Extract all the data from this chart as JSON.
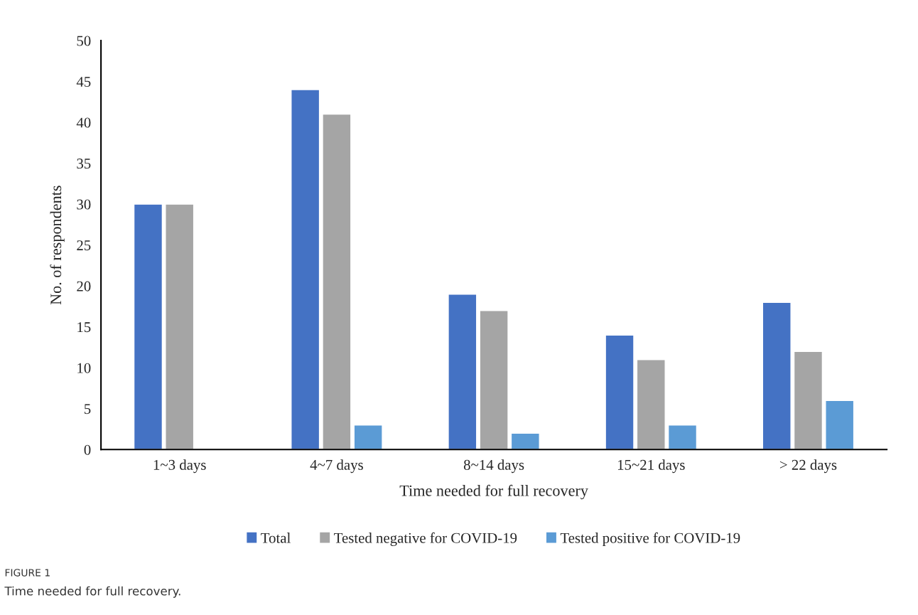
{
  "chart_data": {
    "type": "bar",
    "xlabel": "Time needed for full recovery",
    "ylabel": "No. of respondents",
    "categories": [
      "1~3 days",
      "4~7 days",
      "8~14 days",
      "15~21 days",
      "> 22 days"
    ],
    "series": [
      {
        "name": "Total",
        "color": "#4472c4",
        "values": [
          30,
          44,
          19,
          14,
          18
        ]
      },
      {
        "name": "Tested negative for COVID-19",
        "color": "#a5a5a5",
        "values": [
          30,
          41,
          17,
          11,
          12
        ]
      },
      {
        "name": "Tested positive for COVID-19",
        "color": "#5b9bd5",
        "values": [
          null,
          3,
          2,
          3,
          6
        ]
      }
    ],
    "ylim": [
      0,
      50
    ],
    "yticks": [
      0,
      5,
      10,
      15,
      20,
      25,
      30,
      35,
      40,
      45,
      50
    ],
    "grid": false,
    "legend": "bottom",
    "annotations": [
      "FIGURE 1",
      "Time needed for full recovery."
    ]
  }
}
